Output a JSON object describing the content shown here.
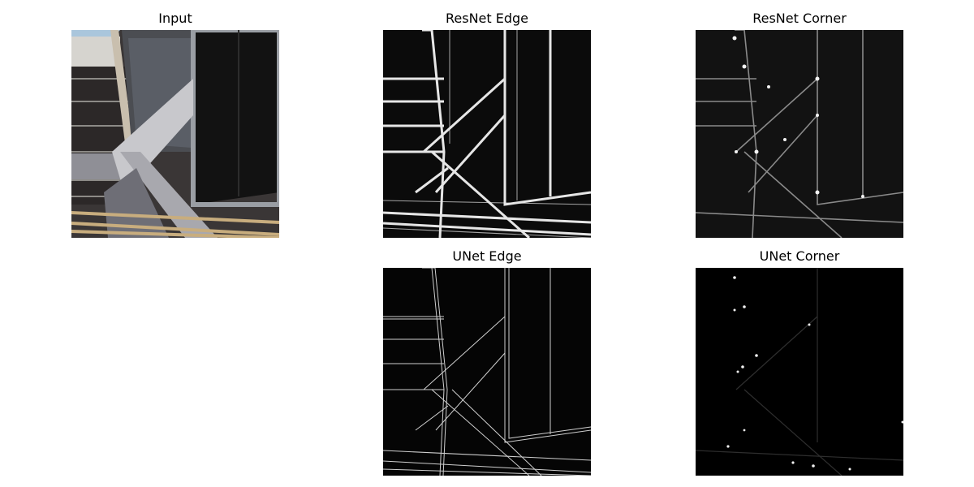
{
  "figure": {
    "panels": [
      {
        "id": "input",
        "title": "Input"
      },
      {
        "id": "resnet-edge",
        "title": "ResNet Edge"
      },
      {
        "id": "resnet-corner",
        "title": "ResNet Corner"
      },
      {
        "id": "unet-edge",
        "title": "UNet Edge"
      },
      {
        "id": "unet-corner",
        "title": "UNet Corner"
      }
    ]
  },
  "colors": {
    "background": "#ffffff",
    "map_bg": "#0b0b0b",
    "edge_stroke": "#e6e6e6",
    "glass_dark": "#141414",
    "sky": "#aac6dc",
    "railing": "#c8ad7e"
  }
}
